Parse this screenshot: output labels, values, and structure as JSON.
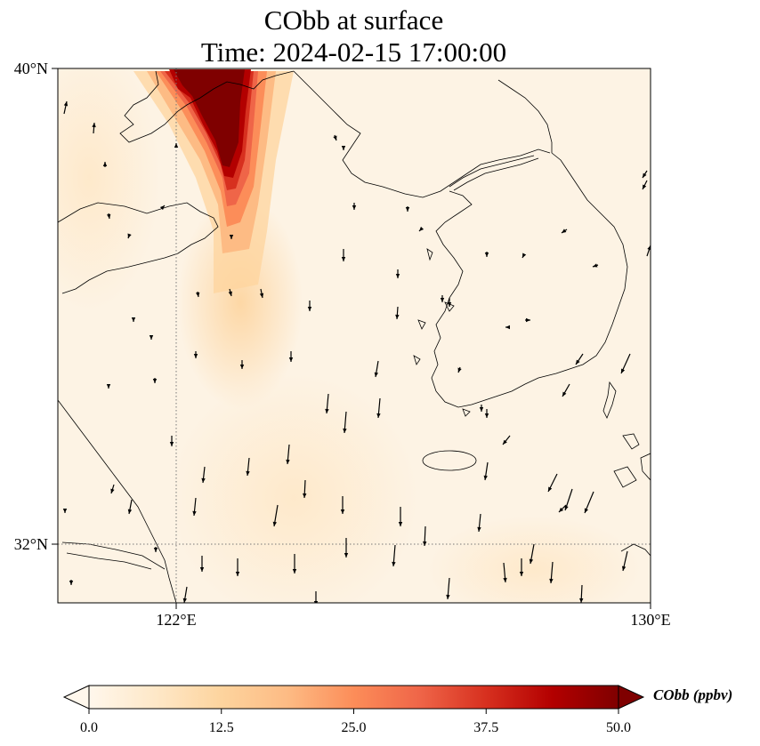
{
  "title": {
    "line1": "CObb at surface",
    "line2": "Time: 2024-02-15 17:00:00"
  },
  "axes": {
    "lat_ticks": [
      {
        "value": 40,
        "label": "40°N"
      },
      {
        "value": 32,
        "label": "32°N"
      }
    ],
    "lon_ticks": [
      {
        "value": 122,
        "label": "122°E"
      },
      {
        "value": 130,
        "label": "130°E"
      }
    ],
    "lon_range": [
      120,
      130
    ],
    "lat_range": [
      31,
      40
    ],
    "gridlines": "dotted"
  },
  "colorbar": {
    "label": "CObb (ppbv)",
    "min": 0.0,
    "max": 50.0,
    "ticks": [
      "0.0",
      "12.5",
      "25.0",
      "37.5",
      "50.0"
    ],
    "extend": "both",
    "colormap": "OrRd",
    "colors": [
      "#fff7ec",
      "#fee8c8",
      "#fdd49e",
      "#fdbb84",
      "#fc8d59",
      "#ef6548",
      "#d7301f",
      "#b30000",
      "#7f0000"
    ]
  },
  "map": {
    "variable": "CObb",
    "level": "surface",
    "plume": "high CObb (>50 ppbv) plume extending south-southeast from the northern edge near 123°E, fading to light orange toward 34°N",
    "vectors": "wind arrows pointing mostly southward"
  }
}
